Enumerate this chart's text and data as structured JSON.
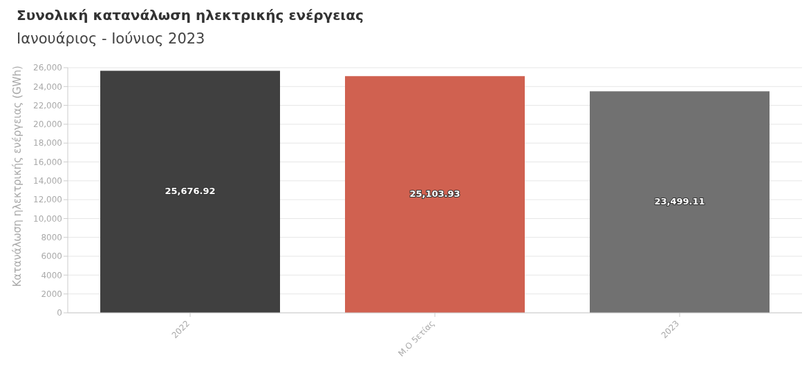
{
  "chart_data": {
    "type": "bar",
    "title": "Συνολική κατανάλωση ηλεκτρικής ενέργειας",
    "subtitle": "Ιανουάριος - Ιούνιος 2023",
    "ylabel": "Κατανάλωση ηλεκτρικής ενέργειας (GWh)",
    "categories": [
      "2022",
      "Μ.Ο 5ετίας",
      "2023"
    ],
    "values": [
      25676.92,
      25103.93,
      23499.11
    ],
    "colors": [
      "#404040",
      "#d06150",
      "#717171"
    ],
    "value_labels": [
      "25,676.92",
      "25,103.93",
      "23,499.11"
    ],
    "ylim": [
      0,
      26000
    ],
    "yticks": [
      0,
      2000,
      4000,
      6000,
      8000,
      {
        "value": 10000,
        "label": "10,000"
      },
      {
        "value": 12000,
        "label": "12,000"
      },
      {
        "value": 14000,
        "label": "14,000"
      },
      {
        "value": 16000,
        "label": "16,000"
      },
      {
        "value": 18000,
        "label": "18,000"
      },
      {
        "value": 20000,
        "label": "20,000"
      },
      {
        "value": 22000,
        "label": "22,000"
      },
      {
        "value": 24000,
        "label": "24,000"
      },
      {
        "value": 26000,
        "label": "26,000"
      }
    ],
    "grid": "y",
    "legend": false
  }
}
